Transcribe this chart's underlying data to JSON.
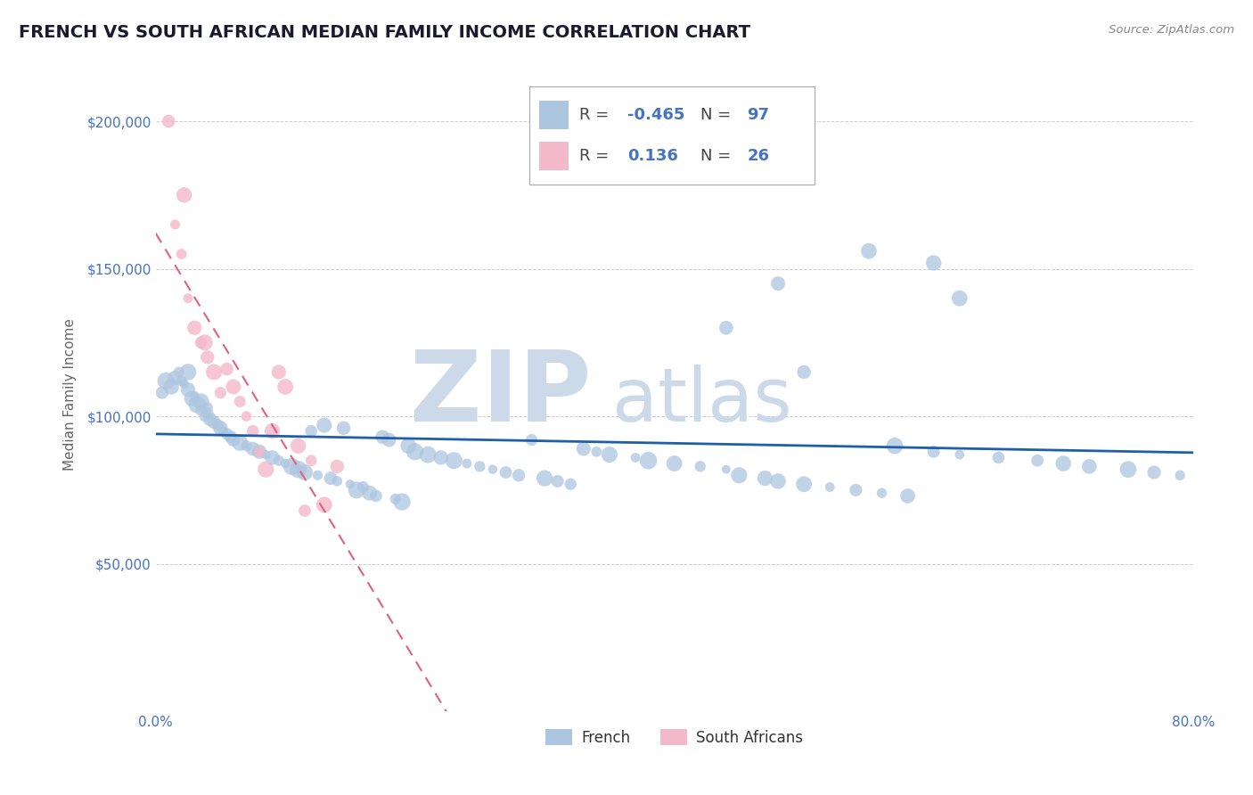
{
  "title": "FRENCH VS SOUTH AFRICAN MEDIAN FAMILY INCOME CORRELATION CHART",
  "source": "Source: ZipAtlas.com",
  "ylabel": "Median Family Income",
  "ytick_labels": [
    "$50,000",
    "$100,000",
    "$150,000",
    "$200,000"
  ],
  "ytick_values": [
    50000,
    100000,
    150000,
    200000
  ],
  "title_color": "#1a1a2e",
  "title_fontsize": 14,
  "watermark_line1": "ZIP",
  "watermark_line2": "atlas",
  "watermark_color": "#ccd9e8",
  "french_color": "#adc6e0",
  "french_line_color": "#1f5fa6",
  "sa_color": "#f4b8cb",
  "sa_line_color": "#e06080",
  "axis_color": "#4472c4",
  "grid_color": "#cccccc",
  "french_R": -0.465,
  "french_N": 97,
  "sa_R": 0.136,
  "sa_N": 26,
  "french_x": [
    0.5,
    0.8,
    1.2,
    1.5,
    1.8,
    2.0,
    2.2,
    2.5,
    2.5,
    2.8,
    3.0,
    3.2,
    3.5,
    3.5,
    3.8,
    4.0,
    4.0,
    4.2,
    4.5,
    4.8,
    5.0,
    5.2,
    5.5,
    5.8,
    6.0,
    6.5,
    7.0,
    7.5,
    8.0,
    8.5,
    9.0,
    9.5,
    10.0,
    10.5,
    11.0,
    11.5,
    12.0,
    12.5,
    13.0,
    13.5,
    14.0,
    14.5,
    15.0,
    15.5,
    16.0,
    16.5,
    17.0,
    17.5,
    18.0,
    18.5,
    19.0,
    19.5,
    20.0,
    21.0,
    22.0,
    23.0,
    24.0,
    25.0,
    26.0,
    27.0,
    28.0,
    29.0,
    30.0,
    31.0,
    32.0,
    33.0,
    34.0,
    35.0,
    37.0,
    38.0,
    40.0,
    42.0,
    44.0,
    45.0,
    47.0,
    48.0,
    50.0,
    52.0,
    54.0,
    56.0,
    57.0,
    58.0,
    60.0,
    62.0,
    65.0,
    68.0,
    70.0,
    72.0,
    75.0,
    77.0,
    79.0,
    60.0,
    55.0,
    48.0,
    62.0,
    50.0,
    44.0
  ],
  "french_y": [
    108000,
    112000,
    110000,
    113000,
    115000,
    112000,
    111000,
    115000,
    109000,
    106000,
    107000,
    104000,
    105000,
    102000,
    100000,
    103000,
    101000,
    99000,
    98000,
    97000,
    96000,
    95000,
    94000,
    93000,
    92000,
    91000,
    90000,
    89000,
    88000,
    87000,
    86000,
    85000,
    84000,
    83000,
    82000,
    81000,
    95000,
    80000,
    97000,
    79000,
    78000,
    96000,
    77000,
    75000,
    76000,
    74000,
    73000,
    93000,
    92000,
    72000,
    71000,
    90000,
    88000,
    87000,
    86000,
    85000,
    84000,
    83000,
    82000,
    81000,
    80000,
    92000,
    79000,
    78000,
    77000,
    89000,
    88000,
    87000,
    86000,
    85000,
    84000,
    83000,
    82000,
    80000,
    79000,
    78000,
    77000,
    76000,
    75000,
    74000,
    90000,
    73000,
    88000,
    87000,
    86000,
    85000,
    84000,
    83000,
    82000,
    81000,
    80000,
    152000,
    156000,
    145000,
    140000,
    115000,
    130000
  ],
  "sa_x": [
    1.0,
    1.5,
    2.0,
    2.5,
    3.0,
    3.5,
    4.0,
    4.5,
    5.0,
    5.5,
    6.0,
    6.5,
    7.0,
    7.5,
    8.0,
    8.5,
    9.0,
    9.5,
    10.0,
    11.0,
    12.0,
    13.0,
    14.0,
    2.2,
    3.8,
    11.5
  ],
  "sa_y": [
    200000,
    165000,
    155000,
    140000,
    130000,
    125000,
    120000,
    115000,
    108000,
    116000,
    110000,
    105000,
    100000,
    95000,
    88000,
    82000,
    95000,
    115000,
    110000,
    90000,
    85000,
    70000,
    83000,
    175000,
    125000,
    68000
  ],
  "sa_trendline_xmin": 0,
  "sa_trendline_xmax": 80,
  "french_trendline_xmin": 0,
  "french_trendline_xmax": 80,
  "xlim": [
    0,
    80
  ],
  "ylim": [
    0,
    215000
  ]
}
